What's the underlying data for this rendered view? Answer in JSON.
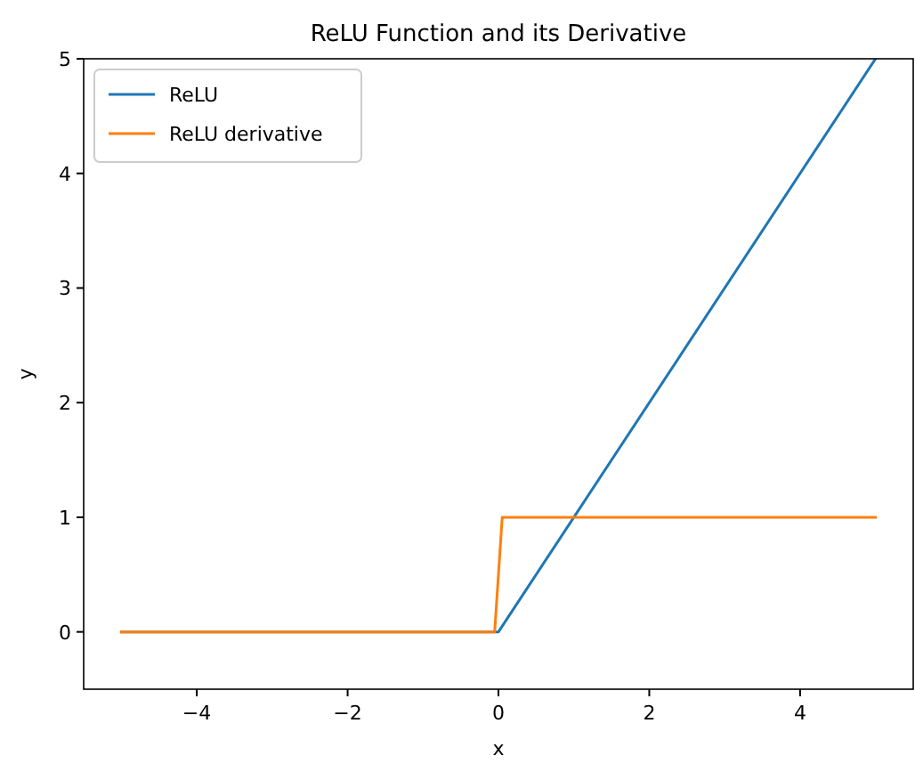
{
  "chart_data": {
    "type": "line",
    "title": "ReLU Function and its Derivative",
    "xlabel": "x",
    "ylabel": "y",
    "xlim": [
      -5.5,
      5.5
    ],
    "ylim": [
      -0.5,
      5
    ],
    "xticks": [
      -4,
      -2,
      0,
      2,
      4
    ],
    "yticks": [
      0,
      1,
      2,
      3,
      4,
      5
    ],
    "grid": false,
    "legend": "top left",
    "series": [
      {
        "name": "ReLU",
        "color": "#1f77b4",
        "x": [
          -5,
          0,
          5
        ],
        "values": [
          0,
          0,
          5
        ]
      },
      {
        "name": "ReLU derivative",
        "color": "#ff7f0e",
        "x": [
          -5,
          -0.05,
          0.05,
          5
        ],
        "values": [
          0,
          0,
          1,
          1
        ]
      }
    ]
  }
}
